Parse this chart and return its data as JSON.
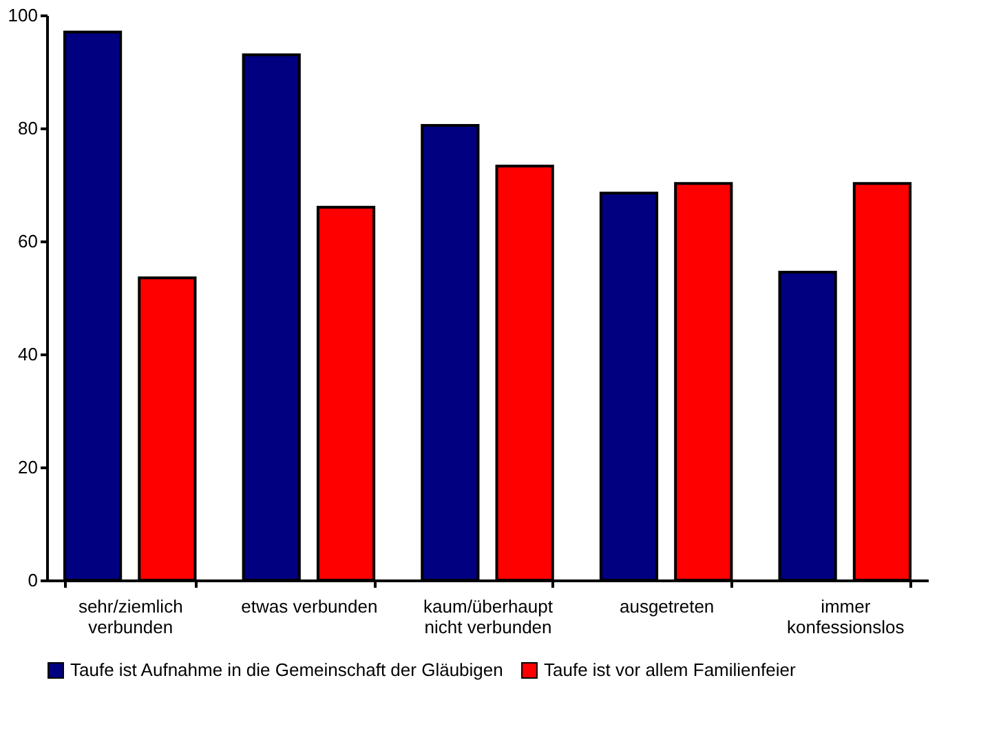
{
  "chart_data": {
    "type": "bar",
    "categories": [
      "sehr/ziemlich\nverbunden",
      "etwas verbunden",
      "kaum/überhaupt\nnicht verbunden",
      "ausgetreten",
      "immer\nkonfessionslos"
    ],
    "series": [
      {
        "name": "Taufe ist Aufnahme in die Gemeinschaft der Gläubigen",
        "color": "#000080",
        "values": [
          97,
          93,
          80.5,
          68.5,
          54.5
        ]
      },
      {
        "name": "Taufe ist vor allem Familienfeier",
        "color": "#ff0000",
        "values": [
          53.5,
          66,
          73.3,
          70.2,
          70.2
        ]
      }
    ],
    "ylim": [
      0,
      100
    ],
    "yticks": [
      0,
      20,
      40,
      60,
      80,
      100
    ],
    "grid": false,
    "legend": "bottom"
  }
}
